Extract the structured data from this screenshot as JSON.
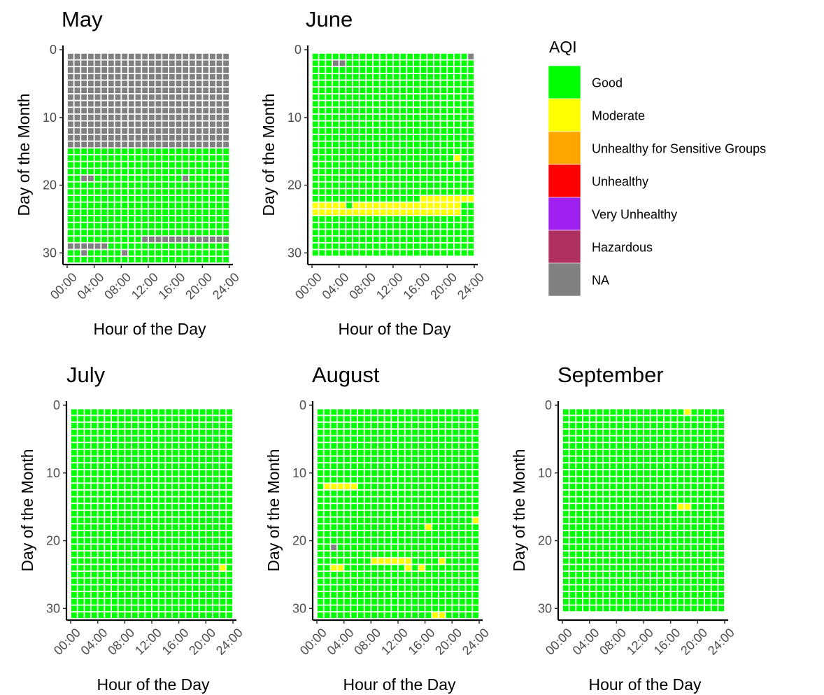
{
  "chart_data": {
    "type": "heatmap",
    "legend": {
      "title": "AQI",
      "placement": "right",
      "categories": [
        "Good",
        "Moderate",
        "Unhealthy for Sensitive Groups",
        "Unhealthy",
        "Very Unhealthy",
        "Hazardous",
        "NA"
      ],
      "colors": {
        "Good": "#00ff00",
        "Moderate": "#ffff00",
        "Unhealthy for Sensitive Groups": "#ffa500",
        "Unhealthy": "#ff0000",
        "Very Unhealthy": "#a020f0",
        "Hazardous": "#b03060",
        "NA": "#808080"
      }
    },
    "x_ticks": [
      "00:00",
      "04:00",
      "08:00",
      "12:00",
      "16:00",
      "20:00",
      "24:00"
    ],
    "x_tick_values": [
      0,
      4,
      8,
      12,
      16,
      20,
      24
    ],
    "y_ticks": [
      "0",
      "10",
      "20",
      "30"
    ],
    "y_tick_values": [
      0,
      10,
      20,
      30
    ],
    "xlabel": "Hour of the Day",
    "ylabel": "Day of the Month",
    "xlim": [
      0,
      24
    ],
    "ylim": [
      0,
      31
    ],
    "hours": [
      0,
      23
    ],
    "panels": [
      {
        "title": "May",
        "days": [
          1,
          31
        ],
        "default": "Good",
        "overrides": [
          {
            "value": "NA",
            "days": [
              1,
              14
            ],
            "hours": [
              0,
              23
            ]
          },
          {
            "value": "NA",
            "days": [
              28,
              28
            ],
            "hours": [
              11,
              23
            ]
          },
          {
            "value": "NA",
            "days": [
              29,
              29
            ],
            "hours": [
              0,
              5
            ]
          },
          {
            "value": "NA",
            "days": [
              30,
              30
            ],
            "hours": [
              2,
              2
            ]
          },
          {
            "value": "NA",
            "days": [
              30,
              30
            ],
            "hours": [
              8,
              8
            ]
          },
          {
            "value": "NA",
            "days": [
              19,
              19
            ],
            "hours": [
              2,
              3
            ]
          },
          {
            "value": "NA",
            "days": [
              19,
              19
            ],
            "hours": [
              17,
              17
            ]
          }
        ]
      },
      {
        "title": "June",
        "days": [
          1,
          30
        ],
        "default": "Good",
        "overrides": [
          {
            "value": "NA",
            "days": [
              1,
              1
            ],
            "hours": [
              23,
              23
            ]
          },
          {
            "value": "NA",
            "days": [
              2,
              2
            ],
            "hours": [
              3,
              4
            ]
          },
          {
            "value": "Moderate",
            "days": [
              16,
              16
            ],
            "hours": [
              21,
              21
            ]
          },
          {
            "value": "Moderate",
            "days": [
              22,
              22
            ],
            "hours": [
              16,
              23
            ]
          },
          {
            "value": "Moderate",
            "days": [
              23,
              24
            ],
            "hours": [
              0,
              21
            ]
          },
          {
            "value": "Good",
            "days": [
              23,
              23
            ],
            "hours": [
              5,
              5
            ]
          }
        ]
      },
      {
        "title": "July",
        "days": [
          1,
          31
        ],
        "default": "Good",
        "overrides": [
          {
            "value": "Moderate",
            "days": [
              24,
              24
            ],
            "hours": [
              22,
              22
            ]
          }
        ]
      },
      {
        "title": "August",
        "days": [
          1,
          31
        ],
        "default": "Good",
        "overrides": [
          {
            "value": "Moderate",
            "days": [
              12,
              12
            ],
            "hours": [
              1,
              5
            ]
          },
          {
            "value": "Moderate",
            "days": [
              17,
              17
            ],
            "hours": [
              23,
              23
            ]
          },
          {
            "value": "Moderate",
            "days": [
              18,
              18
            ],
            "hours": [
              16,
              16
            ]
          },
          {
            "value": "NA",
            "days": [
              21,
              21
            ],
            "hours": [
              2,
              2
            ]
          },
          {
            "value": "Moderate",
            "days": [
              23,
              23
            ],
            "hours": [
              8,
              13
            ]
          },
          {
            "value": "Moderate",
            "days": [
              23,
              23
            ],
            "hours": [
              18,
              18
            ]
          },
          {
            "value": "Moderate",
            "days": [
              24,
              24
            ],
            "hours": [
              2,
              3
            ]
          },
          {
            "value": "Moderate",
            "days": [
              24,
              24
            ],
            "hours": [
              13,
              13
            ]
          },
          {
            "value": "Moderate",
            "days": [
              24,
              24
            ],
            "hours": [
              15,
              15
            ]
          },
          {
            "value": "Moderate",
            "days": [
              31,
              31
            ],
            "hours": [
              17,
              18
            ]
          }
        ]
      },
      {
        "title": "September",
        "days": [
          1,
          30
        ],
        "default": "Good",
        "overrides": [
          {
            "value": "Moderate",
            "days": [
              1,
              1
            ],
            "hours": [
              18,
              18
            ]
          },
          {
            "value": "Moderate",
            "days": [
              15,
              15
            ],
            "hours": [
              17,
              18
            ]
          }
        ]
      }
    ]
  }
}
